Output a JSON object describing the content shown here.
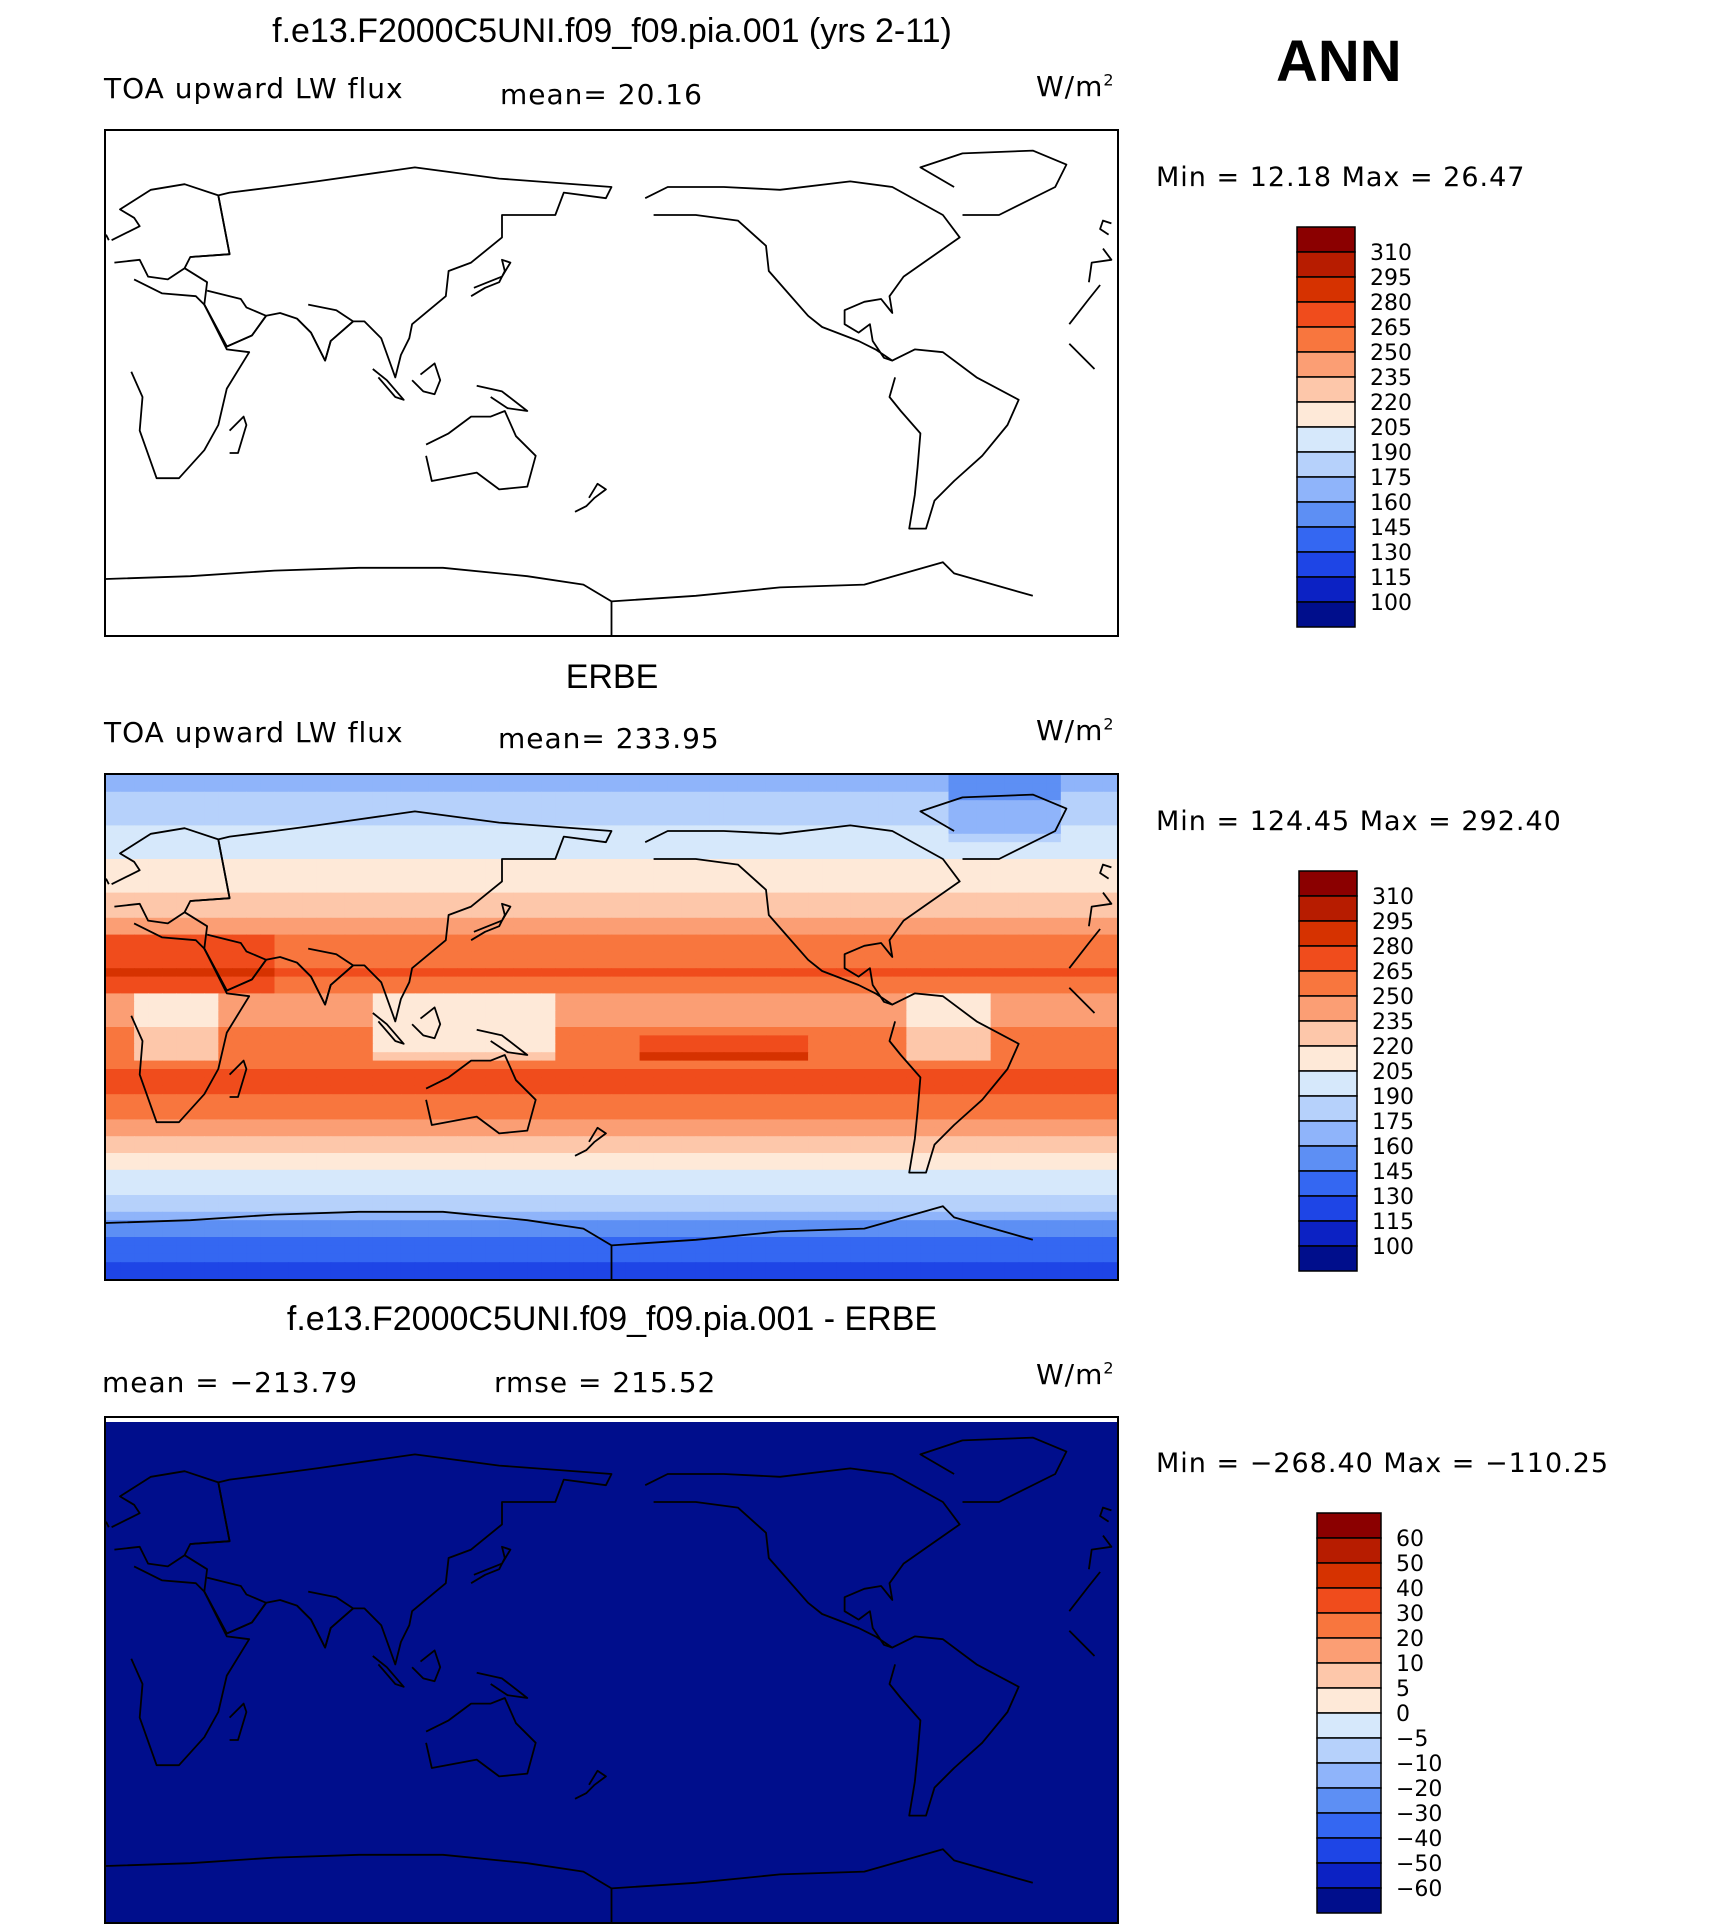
{
  "season": "ANN",
  "units": "W/m",
  "units_exp": "2",
  "panels": [
    {
      "title": "f.e13.F2000C5UNI.f09_f09.pia.001 (yrs 2-11)",
      "variable": "TOA upward LW flux",
      "stat": "mean=  20.16",
      "minmax": "Min =   12.18 Max =   26.47",
      "fill": "none"
    },
    {
      "title": "ERBE",
      "variable": "TOA upward LW flux",
      "stat": "mean= 233.95",
      "minmax": "Min = 124.45 Max = 292.40",
      "fill": "field"
    },
    {
      "title": "f.e13.F2000C5UNI.f09_f09.pia.001 - ERBE",
      "stat_left": "mean = −213.79",
      "stat": "rmse = 215.52",
      "minmax": "Min = −268.40 Max = −110.25",
      "fill": "uniform"
    }
  ],
  "colorbars": {
    "abs_levels": [
      "310",
      "295",
      "280",
      "265",
      "250",
      "235",
      "220",
      "205",
      "190",
      "175",
      "160",
      "145",
      "130",
      "115",
      "100"
    ],
    "abs_colors": [
      "#8b0000",
      "#b71c00",
      "#d63200",
      "#f04c1c",
      "#f8763e",
      "#fb9e74",
      "#fdc7aa",
      "#fee9d8",
      "#d6e8fb",
      "#b6d1fb",
      "#8fb4fa",
      "#5d8ff4",
      "#3467f2",
      "#1e45e6",
      "#0c22c4",
      "#000e8c"
    ],
    "diff_levels": [
      "60",
      "50",
      "40",
      "30",
      "20",
      "10",
      "5",
      "0",
      "−5",
      "−10",
      "−20",
      "−30",
      "−40",
      "−50",
      "−60"
    ],
    "diff_colors": [
      "#8b0000",
      "#b71c00",
      "#d63200",
      "#f04c1c",
      "#f8763e",
      "#fb9e74",
      "#fdc7aa",
      "#fee9d8",
      "#d6e8fb",
      "#b6d1fb",
      "#8fb4fa",
      "#5d8ff4",
      "#3467f2",
      "#1e45e6",
      "#0c22c4",
      "#000e8c"
    ]
  },
  "map_data": {
    "projection": "cylindrical equidistant",
    "central_longitude": 180,
    "lat_range": [
      -90,
      90
    ],
    "erbe_zonal_profile": [
      {
        "lat": 90,
        "value": 170
      },
      {
        "lat": 75,
        "value": 185
      },
      {
        "lat": 60,
        "value": 205
      },
      {
        "lat": 45,
        "value": 225
      },
      {
        "lat": 30,
        "value": 255
      },
      {
        "lat": 20,
        "value": 268
      },
      {
        "lat": 10,
        "value": 245
      },
      {
        "lat": 0,
        "value": 250
      },
      {
        "lat": -10,
        "value": 262
      },
      {
        "lat": -20,
        "value": 270
      },
      {
        "lat": -30,
        "value": 255
      },
      {
        "lat": -45,
        "value": 218
      },
      {
        "lat": -55,
        "value": 200
      },
      {
        "lat": -65,
        "value": 180
      },
      {
        "lat": -75,
        "value": 140
      },
      {
        "lat": -90,
        "value": 125
      }
    ],
    "difference_value": -213.79
  }
}
